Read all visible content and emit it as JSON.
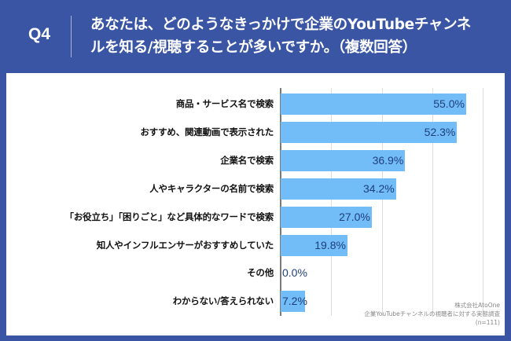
{
  "header": {
    "question_number": "Q4",
    "question_line1": "あなたは、どのようなきっかけで企業のYouTubeチャンネ",
    "question_line2": "ルを知る/視聴することが多いですか。（複数回答）"
  },
  "colors": {
    "frame": "#3a55a4",
    "panel": "#ffffff",
    "bar": "#72bcf8",
    "value_text": "#1e3f7a",
    "label_text": "#111111",
    "gridline": "#dcdcdc"
  },
  "source": {
    "company": "株式会社AtoOne",
    "survey": "企業YouTubeチャンネルの視聴者に対する実態調査",
    "sample": "(n=111)"
  },
  "chart_data": {
    "type": "bar",
    "orientation": "horizontal",
    "title": "あなたは、どのようなきっかけで企業のYouTubeチャンネルを知る/視聴することが多いですか。（複数回答）",
    "categories": [
      "商品・サービス名で検索",
      "おすすめ、関連動画で表示された",
      "企業名で検索",
      "人やキャラクターの名前で検索",
      "「お役立ち」「困りごと」など具体的なワードで検索",
      "知人やインフルエンサーがおすすめしていた",
      "その他",
      "わからない/答えられない"
    ],
    "values": [
      55.0,
      52.3,
      36.9,
      34.2,
      27.0,
      19.8,
      0.0,
      7.2
    ],
    "value_labels": [
      "55.0%",
      "52.3%",
      "36.9%",
      "34.2%",
      "27.0%",
      "19.8%",
      "0.0%",
      "7.2%"
    ],
    "unit": "%",
    "xlabel": "",
    "ylabel": "",
    "xlim": [
      0,
      66
    ],
    "gridlines_at": [
      15,
      30,
      45,
      60
    ],
    "grid": true,
    "legend": "none"
  }
}
